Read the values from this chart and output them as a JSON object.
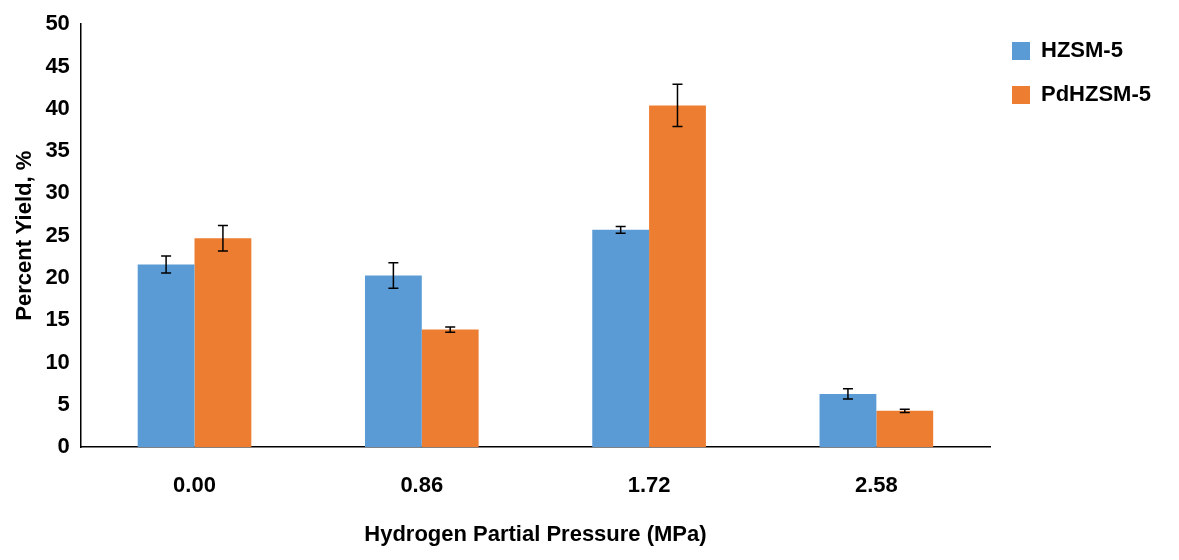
{
  "chart_data": {
    "type": "bar",
    "xlabel": "Hydrogen Partial Pressure (MPa)",
    "ylabel": "Percent Yield, %",
    "categories": [
      "0.00",
      "0.86",
      "1.72",
      "2.58"
    ],
    "series": [
      {
        "name": "HZSM-5",
        "color": "#5b9bd5",
        "values": [
          21.6,
          20.3,
          25.7,
          6.3
        ],
        "errors": [
          1.0,
          1.5,
          0.4,
          0.6
        ]
      },
      {
        "name": "PdHZSM-5",
        "color": "#ed7d31",
        "values": [
          24.7,
          13.9,
          40.4,
          4.3
        ],
        "errors": [
          1.5,
          0.3,
          2.5,
          0.2
        ]
      }
    ],
    "ylim": [
      0,
      50
    ],
    "yticks": [
      0,
      5,
      10,
      15,
      20,
      25,
      30,
      35,
      40,
      45,
      50
    ],
    "grid": false,
    "legend": "top right"
  }
}
